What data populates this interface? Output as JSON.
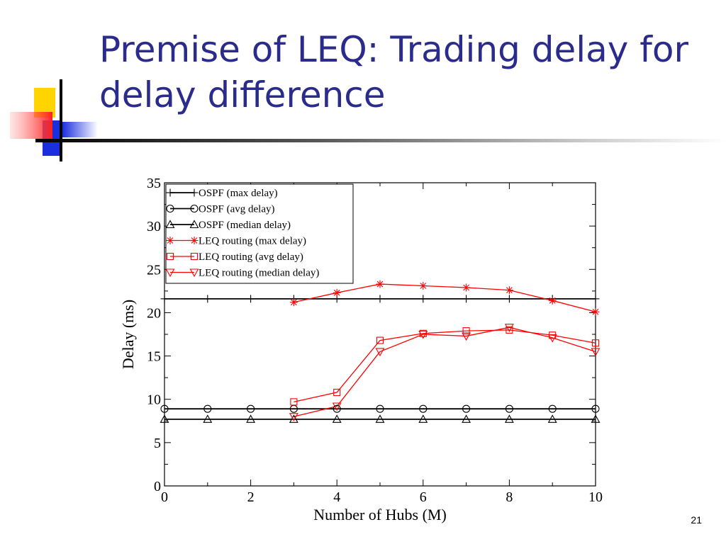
{
  "slide": {
    "title": "Premise of LEQ: Trading delay for delay difference",
    "number": "21"
  },
  "colors": {
    "title": "#2b2b8c",
    "deco_yellow": "#ffd400",
    "deco_red": "#ff3a3a",
    "deco_blue": "#1c2fe0",
    "ospf_series": "#000000",
    "leq_series": "#ff0000"
  },
  "chart_data": {
    "type": "line",
    "title": "",
    "xlabel": "Number of Hubs (M)",
    "ylabel": "Delay (ms)",
    "xlim": [
      0,
      10
    ],
    "ylim": [
      0,
      35
    ],
    "xticks": [
      0,
      2,
      4,
      6,
      8,
      10
    ],
    "yticks": [
      0,
      5,
      10,
      15,
      20,
      25,
      30,
      35
    ],
    "grid": false,
    "legend_position": "top-left",
    "series": [
      {
        "name": "OSPF (max delay)",
        "marker": "plus",
        "color": "#000000",
        "x": [
          0,
          1,
          2,
          3,
          4,
          5,
          6,
          7,
          8,
          9,
          10
        ],
        "y": [
          21.6,
          21.6,
          21.6,
          21.6,
          21.6,
          21.6,
          21.6,
          21.6,
          21.6,
          21.6,
          21.6
        ]
      },
      {
        "name": "OSPF (avg delay)",
        "marker": "circle",
        "color": "#000000",
        "x": [
          0,
          1,
          2,
          3,
          4,
          5,
          6,
          7,
          8,
          9,
          10
        ],
        "y": [
          8.9,
          8.9,
          8.9,
          8.9,
          8.9,
          8.9,
          8.9,
          8.9,
          8.9,
          8.9,
          8.9
        ]
      },
      {
        "name": "OSPF (median delay)",
        "marker": "triangle-up",
        "color": "#000000",
        "x": [
          0,
          1,
          2,
          3,
          4,
          5,
          6,
          7,
          8,
          9,
          10
        ],
        "y": [
          7.7,
          7.7,
          7.7,
          7.7,
          7.7,
          7.7,
          7.7,
          7.7,
          7.7,
          7.7,
          7.7
        ]
      },
      {
        "name": "LEQ routing (max delay)",
        "marker": "star",
        "color": "#ff0000",
        "x": [
          3,
          4,
          5,
          6,
          7,
          8,
          9,
          10
        ],
        "y": [
          21.2,
          22.3,
          23.3,
          23.1,
          22.9,
          22.6,
          21.4,
          20.1
        ]
      },
      {
        "name": "LEQ routing (avg delay)",
        "marker": "square",
        "color": "#ff0000",
        "x": [
          3,
          4,
          5,
          6,
          7,
          8,
          9,
          10
        ],
        "y": [
          9.7,
          10.8,
          16.8,
          17.6,
          17.9,
          18.0,
          17.4,
          16.5
        ]
      },
      {
        "name": "LEQ routing (median delay)",
        "marker": "triangle-down",
        "color": "#ff0000",
        "x": [
          3,
          4,
          5,
          6,
          7,
          8,
          9,
          10
        ],
        "y": [
          8.0,
          9.2,
          15.5,
          17.5,
          17.3,
          18.3,
          17.1,
          15.5
        ]
      }
    ]
  }
}
